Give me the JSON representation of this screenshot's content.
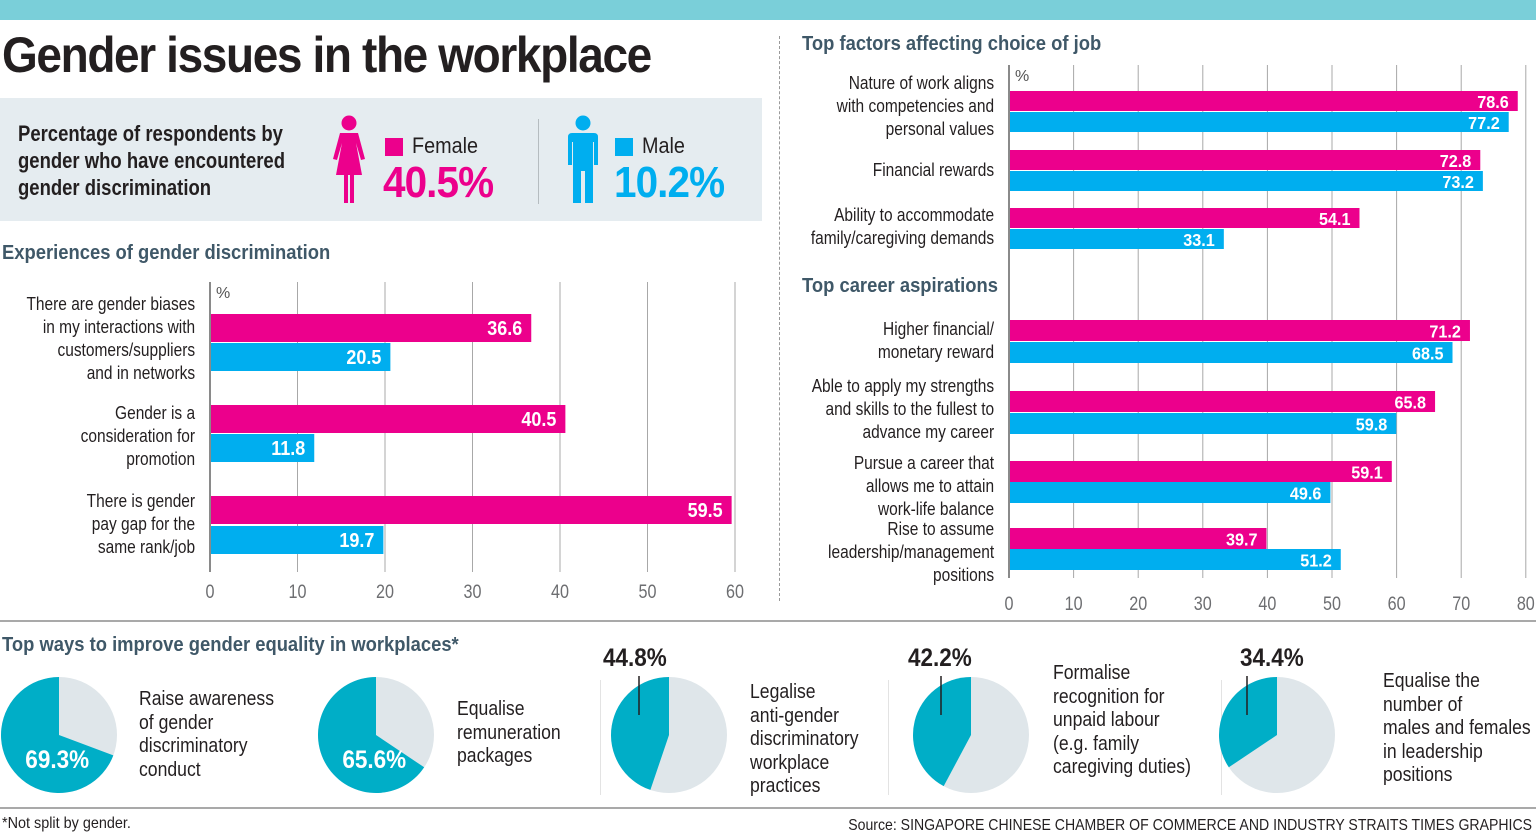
{
  "title": "Gender issues in the workplace",
  "colors": {
    "female": "#ec008c",
    "male": "#00aeef",
    "pie_fill": "#00aec7",
    "pie_rest": "#dfe6ea",
    "header_bar": "#7acfd9",
    "info_bg": "#e5ecf0",
    "section_title": "#3f5868"
  },
  "summary": {
    "text_lines": [
      "Percentage of respondents by",
      "gender who have encountered",
      "gender discrimination"
    ],
    "female": {
      "label": "Female",
      "value": "40.5%",
      "icon": "female-person-icon"
    },
    "male": {
      "label": "Male",
      "value": "10.2%",
      "icon": "male-person-icon"
    }
  },
  "footnote": "*Not split by gender.",
  "source": "Source: SINGAPORE CHINESE CHAMBER OF COMMERCE AND INDUSTRY   STRAITS TIMES GRAPHICS",
  "chart_data": [
    {
      "id": "experiences",
      "type": "bar",
      "orientation": "horizontal",
      "title": "Experiences of gender discrimination",
      "unit_label": "%",
      "categories": [
        [
          "There are gender biases",
          "in my interactions with",
          "customers/suppliers",
          "and in networks"
        ],
        [
          "Gender is a",
          "consideration for",
          "promotion"
        ],
        [
          "There is gender",
          "pay gap for the",
          "same rank/job"
        ]
      ],
      "series": [
        {
          "name": "Female",
          "values": [
            36.6,
            40.5,
            59.5
          ]
        },
        {
          "name": "Male",
          "values": [
            20.5,
            11.8,
            19.7
          ]
        }
      ],
      "xlim": [
        0,
        60
      ],
      "xticks": [
        0,
        10,
        20,
        30,
        40,
        50,
        60
      ],
      "grid": true
    },
    {
      "id": "job-factors",
      "type": "bar",
      "orientation": "horizontal",
      "title": "Top factors affecting choice of job",
      "unit_label": "%",
      "categories": [
        [
          "Nature of work aligns",
          "with competencies and",
          "personal values"
        ],
        [
          "Financial rewards"
        ],
        [
          "Ability to accommodate",
          "family/caregiving demands"
        ]
      ],
      "series": [
        {
          "name": "Female",
          "values": [
            78.6,
            72.8,
            54.1
          ]
        },
        {
          "name": "Male",
          "values": [
            77.2,
            73.2,
            33.1
          ]
        }
      ],
      "xlim": [
        0,
        80
      ],
      "grid": true
    },
    {
      "id": "career-aspirations",
      "type": "bar",
      "orientation": "horizontal",
      "title": "Top career aspirations",
      "categories": [
        [
          "Higher financial/",
          "monetary reward"
        ],
        [
          "Able to apply my strengths",
          "and skills to the fullest to",
          "advance my career"
        ],
        [
          "Pursue a career that",
          "allows me to attain",
          "work-life balance"
        ],
        [
          "Rise to assume",
          "leadership/management",
          "positions"
        ]
      ],
      "series": [
        {
          "name": "Female",
          "values": [
            71.2,
            65.8,
            59.1,
            39.7
          ]
        },
        {
          "name": "Male",
          "values": [
            68.5,
            59.8,
            49.6,
            51.2
          ]
        }
      ],
      "xlim": [
        0,
        80
      ],
      "xticks": [
        0,
        10,
        20,
        30,
        40,
        50,
        60,
        70,
        80
      ],
      "grid": true
    },
    {
      "id": "improve-equality",
      "type": "pie",
      "title": "Top ways to improve gender equality in workplaces*",
      "items": [
        {
          "label_lines": [
            "Raise awareness",
            "of gender",
            "discriminatory",
            "conduct"
          ],
          "value": 69.3,
          "display": "69.3%"
        },
        {
          "label_lines": [
            "Equalise",
            "remuneration",
            "packages"
          ],
          "value": 65.6,
          "display": "65.6%"
        },
        {
          "label_lines": [
            "Legalise",
            "anti-gender",
            "discriminatory",
            "workplace",
            "practices"
          ],
          "value": 44.8,
          "display": "44.8%"
        },
        {
          "label_lines": [
            "Formalise",
            "recognition for",
            "unpaid labour",
            "(e.g. family",
            "caregiving duties)"
          ],
          "value": 42.2,
          "display": "42.2%"
        },
        {
          "label_lines": [
            "Equalise the",
            "number of",
            "males and females",
            "in leadership",
            "positions"
          ],
          "value": 34.4,
          "display": "34.4%"
        }
      ]
    }
  ]
}
